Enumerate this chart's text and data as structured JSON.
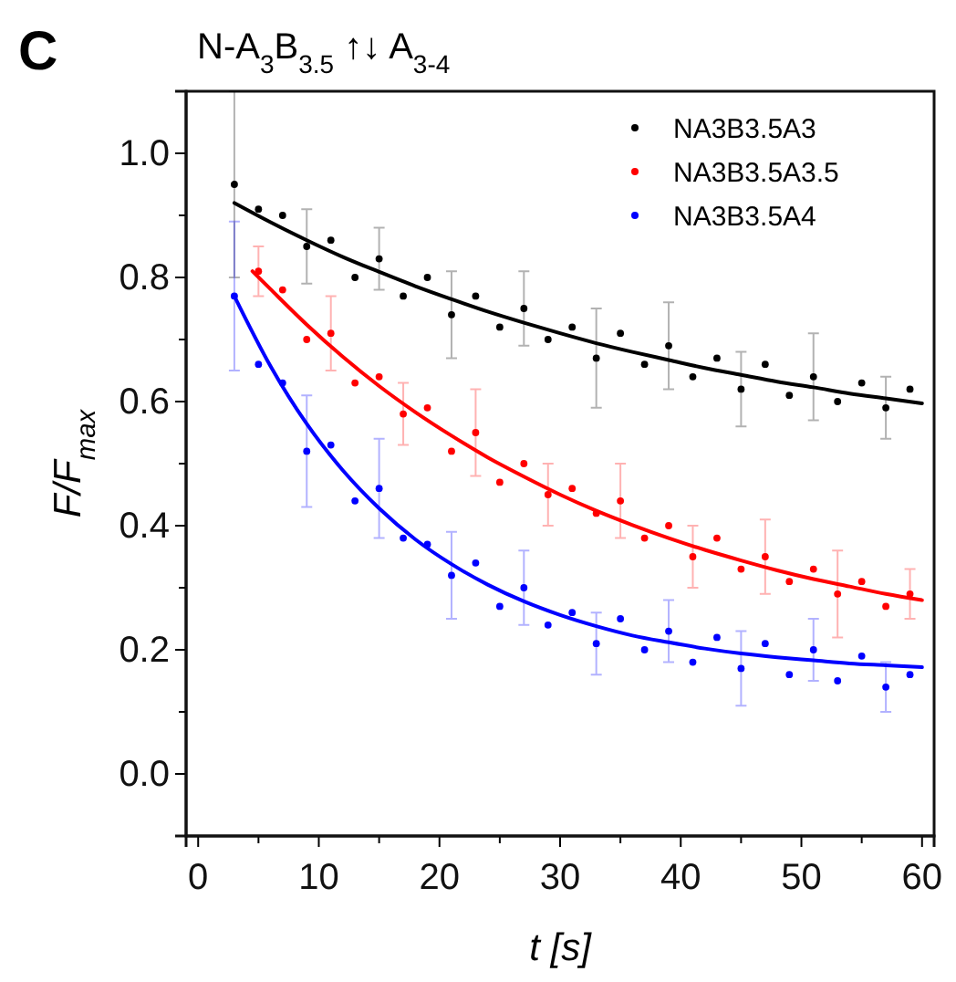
{
  "chart_data": {
    "type": "scatter",
    "title": "N-A$_{3}$B$_{3.5}$ ↑↓ A$_{3-4}$",
    "xlabel": "t [s]",
    "ylabel": "F/F$_{max}$",
    "annotations": [
      "C"
    ],
    "xlim": [
      -1,
      61
    ],
    "ylim": [
      -0.1,
      1.1
    ],
    "xticks": [
      0,
      {
        "value": 5,
        "label": null
      },
      10,
      {
        "value": 15,
        "label": null
      },
      20,
      {
        "value": 25,
        "label": null
      },
      30,
      {
        "value": 35,
        "label": null
      },
      40,
      {
        "value": 45,
        "label": null
      },
      50,
      {
        "value": 55,
        "label": null
      },
      60
    ],
    "yticks": [
      {
        "value": 0,
        "label": "0.0"
      },
      {
        "value": 0.1,
        "label": null
      },
      {
        "value": 0.2,
        "label": "0.2"
      },
      {
        "value": 0.3,
        "label": null
      },
      {
        "value": 0.4,
        "label": "0.4"
      },
      {
        "value": 0.5,
        "label": null
      },
      {
        "value": 0.6,
        "label": "0.6"
      },
      {
        "value": 0.7,
        "label": null
      },
      {
        "value": 0.8,
        "label": "0.8"
      },
      {
        "value": 0.9,
        "label": null
      },
      {
        "value": 1,
        "label": "1.0"
      }
    ],
    "grid": false,
    "legend": "top right",
    "marker": "circle",
    "series": [
      {
        "name": "NA3B3.5A3",
        "color": "#000000",
        "x": [
          3,
          5,
          7,
          9,
          11,
          13,
          15,
          17,
          19,
          21,
          23,
          25,
          27,
          29,
          31,
          33,
          35,
          37,
          39,
          41,
          43,
          45,
          47,
          49,
          51,
          53,
          55,
          57,
          59
        ],
        "values": [
          0.95,
          0.91,
          0.9,
          0.85,
          0.86,
          0.8,
          0.83,
          0.77,
          0.8,
          0.74,
          0.77,
          0.72,
          0.75,
          0.7,
          0.72,
          0.67,
          0.71,
          0.66,
          0.69,
          0.64,
          0.67,
          0.62,
          0.66,
          0.61,
          0.64,
          0.6,
          0.63,
          0.59,
          0.62
        ],
        "errors": [
          0.15,
          null,
          null,
          0.06,
          null,
          null,
          0.05,
          null,
          null,
          0.07,
          null,
          null,
          0.06,
          null,
          null,
          0.08,
          null,
          null,
          0.07,
          null,
          null,
          0.06,
          null,
          null,
          0.07,
          null,
          null,
          0.05,
          null
        ]
      },
      {
        "name": "NA3B3.5A3.5",
        "color": "#ff0000",
        "x": [
          5,
          7,
          9,
          11,
          13,
          15,
          17,
          19,
          21,
          23,
          25,
          27,
          29,
          31,
          33,
          35,
          37,
          39,
          41,
          43,
          45,
          47,
          49,
          51,
          53,
          55,
          57,
          59
        ],
        "values": [
          0.81,
          0.78,
          0.7,
          0.71,
          0.63,
          0.64,
          0.58,
          0.59,
          0.52,
          0.55,
          0.47,
          0.5,
          0.45,
          0.46,
          0.42,
          0.44,
          0.38,
          0.4,
          0.35,
          0.38,
          0.33,
          0.35,
          0.31,
          0.33,
          0.29,
          0.31,
          0.27,
          0.29
        ],
        "errors": [
          0.04,
          null,
          null,
          0.06,
          null,
          null,
          0.05,
          null,
          null,
          0.07,
          null,
          null,
          0.05,
          null,
          null,
          0.06,
          null,
          null,
          0.05,
          null,
          null,
          0.06,
          null,
          null,
          0.07,
          null,
          null,
          0.04
        ]
      },
      {
        "name": "NA3B3.5A4",
        "color": "#0000ff",
        "x": [
          3,
          5,
          7,
          9,
          11,
          13,
          15,
          17,
          19,
          21,
          23,
          25,
          27,
          29,
          31,
          33,
          35,
          37,
          39,
          41,
          43,
          45,
          47,
          49,
          51,
          53,
          55,
          57,
          59
        ],
        "values": [
          0.77,
          0.66,
          0.63,
          0.52,
          0.53,
          0.44,
          0.46,
          0.38,
          0.37,
          0.32,
          0.34,
          0.27,
          0.3,
          0.24,
          0.26,
          0.21,
          0.25,
          0.2,
          0.23,
          0.18,
          0.22,
          0.17,
          0.21,
          0.16,
          0.2,
          0.15,
          0.19,
          0.14,
          0.16
        ],
        "errors": [
          0.12,
          null,
          null,
          0.09,
          null,
          null,
          0.08,
          null,
          null,
          0.07,
          null,
          null,
          0.06,
          null,
          null,
          0.05,
          null,
          null,
          0.05,
          null,
          null,
          0.06,
          null,
          null,
          0.05,
          null,
          null,
          0.04,
          null
        ]
      },
      {
        "type": "line",
        "color": "#000000",
        "marker": "none",
        "x": [
          3,
          6,
          9,
          12,
          15,
          18,
          21,
          24,
          27,
          30,
          33,
          36,
          39,
          42,
          45,
          48,
          51,
          54,
          57,
          60
        ],
        "values": [
          0.92,
          0.889,
          0.86,
          0.833,
          0.809,
          0.786,
          0.765,
          0.745,
          0.727,
          0.71,
          0.694,
          0.68,
          0.667,
          0.654,
          0.643,
          0.632,
          0.623,
          0.613,
          0.605,
          0.597
        ]
      },
      {
        "type": "line",
        "color": "#ff0000",
        "marker": "none",
        "x": [
          4.5,
          6,
          9,
          12,
          15,
          18,
          21,
          24,
          27,
          30,
          33,
          36,
          39,
          42,
          45,
          48,
          51,
          54,
          57,
          60
        ],
        "values": [
          0.81,
          0.781,
          0.724,
          0.672,
          0.625,
          0.583,
          0.545,
          0.51,
          0.479,
          0.45,
          0.424,
          0.401,
          0.38,
          0.361,
          0.344,
          0.328,
          0.314,
          0.302,
          0.29,
          0.28
        ]
      },
      {
        "type": "line",
        "color": "#0000ff",
        "marker": "none",
        "x": [
          3,
          6,
          9,
          12,
          15,
          18,
          21,
          24,
          27,
          30,
          33,
          36,
          39,
          42,
          45,
          48,
          51,
          54,
          57,
          60
        ],
        "values": [
          0.77,
          0.657,
          0.564,
          0.489,
          0.428,
          0.378,
          0.338,
          0.305,
          0.278,
          0.256,
          0.238,
          0.223,
          0.212,
          0.202,
          0.194,
          0.188,
          0.183,
          0.178,
          0.175,
          0.172
        ]
      }
    ]
  }
}
